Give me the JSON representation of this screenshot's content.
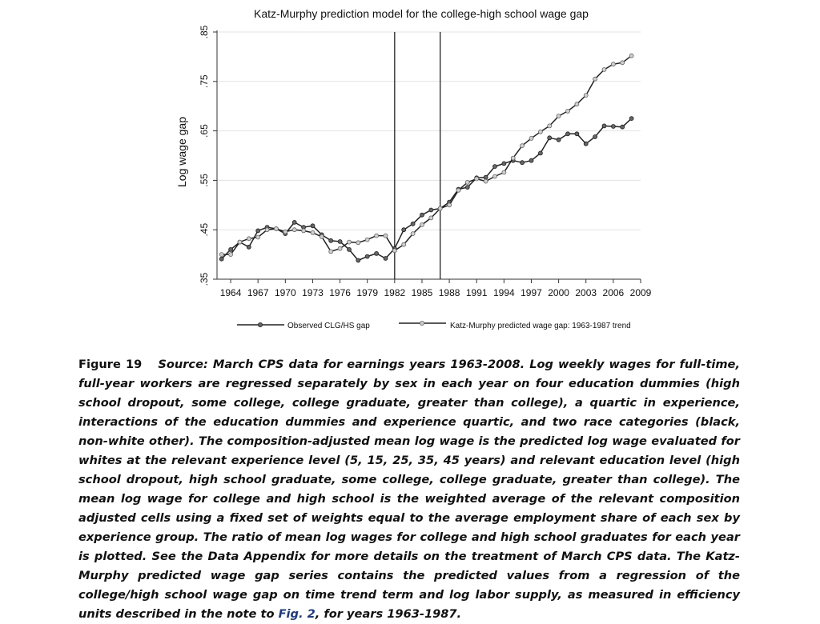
{
  "chart_data": {
    "type": "line",
    "title": "Katz-Murphy prediction model for the college-high school wage gap",
    "ylabel": "Log wage gap",
    "xlabel": "",
    "xlim": [
      1962.5,
      2009
    ],
    "ylim": [
      0.35,
      0.85
    ],
    "y_ticks": [
      ".35",
      ".45",
      ".55",
      ".65",
      ".75",
      ".85"
    ],
    "y_tick_values": [
      0.35,
      0.45,
      0.55,
      0.65,
      0.75,
      0.85
    ],
    "x_ticks": [
      1964,
      1967,
      1970,
      1973,
      1976,
      1979,
      1982,
      1985,
      1988,
      1991,
      1994,
      1997,
      2000,
      2003,
      2006,
      2009
    ],
    "grid": true,
    "vertical_lines": [
      1982,
      1987
    ],
    "legend_position": "bottom",
    "series": [
      {
        "name": "Observed CLG/HS gap",
        "x": [
          1963,
          1964,
          1965,
          1966,
          1967,
          1968,
          1969,
          1970,
          1971,
          1972,
          1973,
          1974,
          1975,
          1976,
          1977,
          1978,
          1979,
          1980,
          1981,
          1982,
          1983,
          1984,
          1985,
          1986,
          1987,
          1988,
          1989,
          1990,
          1991,
          1992,
          1993,
          1994,
          1995,
          1996,
          1997,
          1998,
          1999,
          2000,
          2001,
          2002,
          2003,
          2004,
          2005,
          2006,
          2007,
          2008
        ],
        "values": [
          0.391,
          0.41,
          0.425,
          0.415,
          0.448,
          0.455,
          0.452,
          0.442,
          0.465,
          0.455,
          0.458,
          0.44,
          0.428,
          0.426,
          0.41,
          0.388,
          0.396,
          0.402,
          0.392,
          0.412,
          0.45,
          0.462,
          0.48,
          0.49,
          0.493,
          0.506,
          0.532,
          0.536,
          0.555,
          0.556,
          0.578,
          0.584,
          0.59,
          0.586,
          0.59,
          0.605,
          0.636,
          0.632,
          0.644,
          0.644,
          0.624,
          0.638,
          0.66,
          0.659,
          0.658,
          0.675
        ]
      },
      {
        "name": "Katz-Murphy predicted wage gap: 1963-1987 trend",
        "x": [
          1963,
          1964,
          1965,
          1966,
          1967,
          1968,
          1969,
          1970,
          1971,
          1972,
          1973,
          1974,
          1975,
          1976,
          1977,
          1978,
          1979,
          1980,
          1981,
          1982,
          1983,
          1984,
          1985,
          1986,
          1987,
          1988,
          1989,
          1990,
          1991,
          1992,
          1993,
          1994,
          1995,
          1996,
          1997,
          1998,
          1999,
          2000,
          2001,
          2002,
          2003,
          2004,
          2005,
          2006,
          2007,
          2008
        ],
        "values": [
          0.4,
          0.4,
          0.425,
          0.432,
          0.435,
          0.45,
          0.452,
          0.446,
          0.45,
          0.448,
          0.444,
          0.436,
          0.406,
          0.412,
          0.425,
          0.424,
          0.43,
          0.438,
          0.438,
          0.408,
          0.42,
          0.442,
          0.46,
          0.474,
          0.493,
          0.5,
          0.53,
          0.546,
          0.553,
          0.548,
          0.558,
          0.566,
          0.595,
          0.62,
          0.635,
          0.648,
          0.66,
          0.68,
          0.69,
          0.704,
          0.722,
          0.755,
          0.774,
          0.785,
          0.788,
          0.802
        ]
      }
    ]
  },
  "caption": {
    "label": "Figure 19",
    "text": "Source: March CPS data for earnings years 1963-2008. Log weekly wages for full-time, full-year workers are regressed separately by sex in each year on four education dummies (high school dropout, some college, college graduate, greater than college), a quartic in experience, interactions of the education dummies and experience quartic, and two race categories (black, non-white other). The composition-adjusted mean log wage is the predicted log wage evaluated for whites at the relevant experience level (5, 15, 25, 35, 45 years) and relevant education level (high school dropout, high school graduate, some college, college graduate, greater than college). The mean log wage for college and high school is the weighted average of the relevant composition adjusted cells using a fixed set of weights equal to the average employment share of each sex by experience group. The ratio of mean log wages for college and high school graduates for each year is plotted. See the Data Appendix for more details on the treatment of March CPS data. The Katz-Murphy predicted wage gap series contains the predicted values from a regression of the college/high school wage gap on time trend term and log labor supply, as measured in efficiency units described in the note to",
    "link": "Fig. 2",
    "tail": ", for years 1963-1987."
  }
}
